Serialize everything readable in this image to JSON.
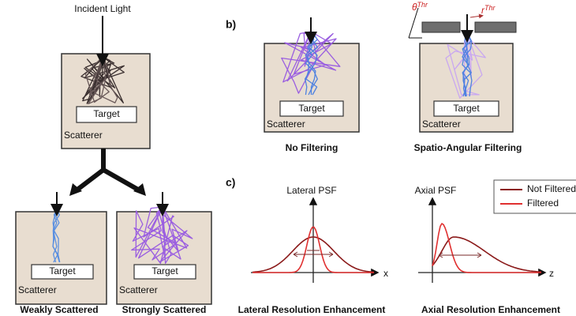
{
  "panel_a": {
    "incident_light": "Incident Light",
    "main": {
      "target": "Target",
      "scatterer": "Scatterer"
    },
    "weak": {
      "target": "Target",
      "scatterer": "Scatterer",
      "caption": "Weakly Scattered"
    },
    "strong": {
      "target": "Target",
      "scatterer": "Scatterer",
      "caption": "Strongly Scattered"
    }
  },
  "panel_b": {
    "label": "b)",
    "no_filter": {
      "target": "Target",
      "scatterer": "Scatterer",
      "caption": "No Filtering"
    },
    "filter": {
      "target": "Target",
      "scatterer": "Scatterer",
      "caption": "Spatio-Angular Filtering",
      "angle": "θ",
      "angle_sub": "Thr",
      "radius": "r",
      "radius_sub": "Thr"
    }
  },
  "panel_c": {
    "label": "c)",
    "lateral": {
      "title": "Lateral PSF",
      "axis": "x",
      "caption": "Lateral Resolution Enhancement"
    },
    "axial": {
      "title": "Axial PSF",
      "axis": "z",
      "caption": "Axial Resolution Enhancement"
    },
    "legend": [
      "Not Filtered",
      "Filtered"
    ]
  }
}
